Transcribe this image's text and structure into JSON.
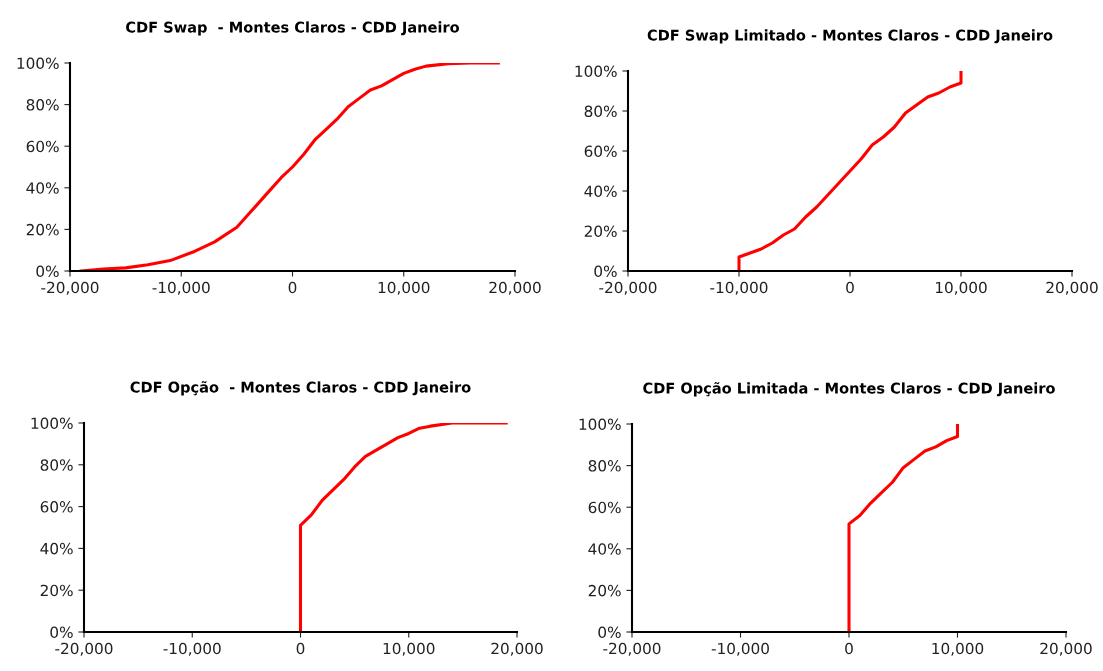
{
  "chart_data": [
    {
      "type": "line",
      "title": "CDF Swap  - Montes Claros - CDD Janeiro",
      "x": [
        -19000,
        -17000,
        -15000,
        -13000,
        -11000,
        -9000,
        -7000,
        -5000,
        -4000,
        -3000,
        -2000,
        -1000,
        0,
        1000,
        2000,
        3000,
        4000,
        5000,
        6000,
        7000,
        8000,
        9000,
        10000,
        11000,
        12000,
        14000,
        16000,
        18500
      ],
      "series": [
        {
          "color": "#ff0000",
          "values": [
            0,
            1,
            1.5,
            3,
            5,
            9,
            14,
            21,
            27,
            33,
            39,
            45,
            50,
            56,
            63,
            68,
            73,
            79,
            83,
            87,
            89,
            92,
            95,
            97,
            98.5,
            99.7,
            100,
            100
          ]
        }
      ],
      "xlim": [
        -20000,
        20000
      ],
      "xticks": [
        {
          "value": -20000,
          "label": "-20,000"
        },
        {
          "value": -10000,
          "label": "-10,000"
        },
        0,
        {
          "value": 10000,
          "label": "10,000"
        },
        {
          "value": 20000,
          "label": "20,000"
        }
      ],
      "ylim": [
        0,
        100
      ],
      "yticks": [
        {
          "value": 0,
          "label": "0%"
        },
        {
          "value": 20,
          "label": "20%"
        },
        {
          "value": 40,
          "label": "40%"
        },
        {
          "value": 60,
          "label": "60%"
        },
        {
          "value": 80,
          "label": "80%"
        },
        {
          "value": 100,
          "label": "100%"
        }
      ]
    },
    {
      "type": "line",
      "title": "CDF Swap Limitado - Montes Claros - CDD Janeiro",
      "x": [
        -10000,
        -10000,
        -9000,
        -8000,
        -7000,
        -6000,
        -5000,
        -4000,
        -3000,
        -2000,
        -1000,
        0,
        1000,
        2000,
        3000,
        4000,
        5000,
        6000,
        7000,
        8000,
        9000,
        10000,
        10000
      ],
      "series": [
        {
          "color": "#ff0000",
          "values": [
            0,
            7,
            9,
            11,
            14,
            18,
            21,
            27,
            32,
            38,
            44,
            50,
            56,
            63,
            67,
            72,
            79,
            83,
            87,
            89,
            92,
            94,
            100
          ]
        }
      ],
      "xlim": [
        -20000,
        20000
      ],
      "xticks": [
        {
          "value": -20000,
          "label": "-20,000"
        },
        {
          "value": -10000,
          "label": "-10,000"
        },
        0,
        {
          "value": 10000,
          "label": "10,000"
        },
        {
          "value": 20000,
          "label": "20,000"
        }
      ],
      "ylim": [
        0,
        100
      ],
      "yticks": [
        {
          "value": 0,
          "label": "0%"
        },
        {
          "value": 20,
          "label": "20%"
        },
        {
          "value": 40,
          "label": "40%"
        },
        {
          "value": 60,
          "label": "60%"
        },
        {
          "value": 80,
          "label": "80%"
        },
        {
          "value": 100,
          "label": "100%"
        }
      ]
    },
    {
      "type": "line",
      "title": "CDF Opção  - Montes Claros - CDD Janeiro",
      "x": [
        0,
        0,
        1000,
        2000,
        3000,
        4000,
        5000,
        6000,
        7000,
        8000,
        9000,
        10000,
        11000,
        12000,
        14000,
        19000
      ],
      "series": [
        {
          "color": "#ff0000",
          "values": [
            0,
            51,
            56,
            63,
            68,
            73,
            79,
            84,
            87,
            90,
            93,
            95,
            97.5,
            98.5,
            100,
            100
          ]
        }
      ],
      "xlim": [
        -20000,
        20000
      ],
      "xticks": [
        {
          "value": -20000,
          "label": "-20,000"
        },
        {
          "value": -10000,
          "label": "-10,000"
        },
        0,
        {
          "value": 10000,
          "label": "10,000"
        },
        {
          "value": 20000,
          "label": "20,000"
        }
      ],
      "ylim": [
        0,
        100
      ],
      "yticks": [
        {
          "value": 0,
          "label": "0%"
        },
        {
          "value": 20,
          "label": "20%"
        },
        {
          "value": 40,
          "label": "40%"
        },
        {
          "value": 60,
          "label": "60%"
        },
        {
          "value": 80,
          "label": "80%"
        },
        {
          "value": 100,
          "label": "100%"
        }
      ]
    },
    {
      "type": "line",
      "title": "CDF Opção Limitada - Montes Claros - CDD Janeiro",
      "x": [
        0,
        0,
        1000,
        2000,
        3000,
        4000,
        5000,
        6000,
        7000,
        8000,
        9000,
        10000,
        10000
      ],
      "series": [
        {
          "color": "#ff0000",
          "values": [
            0,
            52,
            56,
            62,
            67,
            72,
            79,
            83,
            87,
            89,
            92,
            94,
            100
          ]
        }
      ],
      "xlim": [
        -20000,
        20000
      ],
      "xticks": [
        {
          "value": -20000,
          "label": "-20,000"
        },
        {
          "value": -10000,
          "label": "-10,000"
        },
        0,
        {
          "value": 10000,
          "label": "10,000"
        },
        {
          "value": 20000,
          "label": "20,000"
        }
      ],
      "ylim": [
        0,
        100
      ],
      "yticks": [
        {
          "value": 0,
          "label": "0%"
        },
        {
          "value": 20,
          "label": "20%"
        },
        {
          "value": 40,
          "label": "40%"
        },
        {
          "value": 60,
          "label": "60%"
        },
        {
          "value": 80,
          "label": "80%"
        },
        {
          "value": 100,
          "label": "100%"
        }
      ]
    }
  ]
}
